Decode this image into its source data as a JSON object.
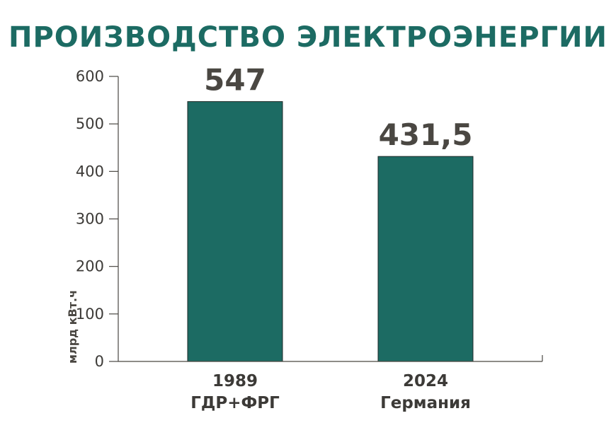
{
  "chart_data": {
    "type": "bar",
    "title": "ПРОИЗВОДСТВО ЭЛЕКТРОЭНЕРГИИ",
    "ylabel": "млрд кВт.ч",
    "xlabel": "",
    "ylim": [
      0,
      600
    ],
    "yticks": [
      0,
      100,
      200,
      300,
      400,
      500,
      600
    ],
    "categories": [
      {
        "year": "1989",
        "name": "ГДР+ФРГ"
      },
      {
        "year": "2024",
        "name": "Германия"
      }
    ],
    "values": [
      547,
      431.5
    ],
    "value_labels": [
      "547",
      "431,5"
    ],
    "grid": false,
    "bar_color": "#1c6b63",
    "title_color": "#1c6b63"
  }
}
